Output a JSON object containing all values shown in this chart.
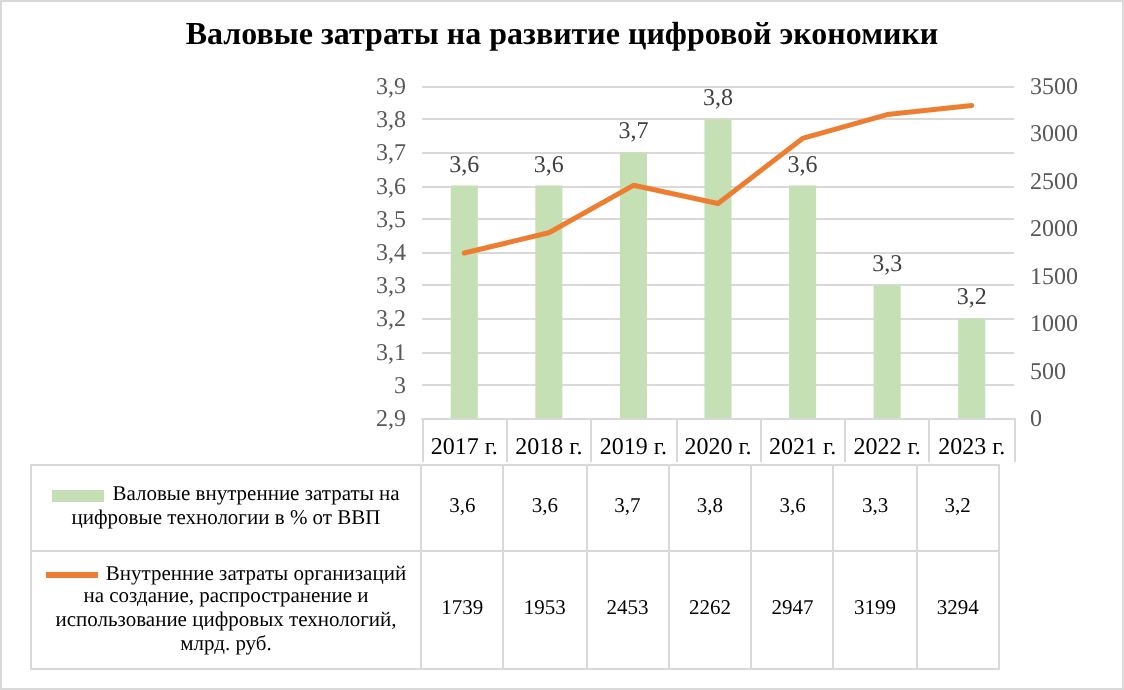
{
  "chart_data": {
    "type": "bar",
    "title": "Валовые  затраты на развитие цифровой экономики",
    "categories": [
      "2017 г.",
      "2018 г.",
      "2019 г.",
      "2020 г.",
      "2021 г.",
      "2022 г.",
      "2023 г."
    ],
    "series": [
      {
        "name": "Валовые внутренние затраты на цифровые технологии в % от ВВП",
        "color": "#c5e0b4",
        "values": [
          3.6,
          3.6,
          3.7,
          3.8,
          3.6,
          3.3,
          3.2
        ],
        "value_labels": [
          "3,6",
          "3,6",
          "3,7",
          "3,8",
          "3,6",
          "3,3",
          "3,2"
        ]
      },
      {
        "name": "Внутренние затраты организаций на создание, распространение и использование цифровых технологий, млрд. руб.",
        "type": "line",
        "axis": "y2",
        "color": "#ed7d31",
        "values": [
          1739,
          1953,
          2453,
          2262,
          2947,
          3199,
          3294
        ],
        "value_labels": [
          "1739",
          "1953",
          "2453",
          "2262",
          "2947",
          "3199",
          "3294"
        ]
      }
    ],
    "ylim": [
      2.9,
      3.9
    ],
    "yticks": [
      {
        "value": 2.9,
        "label": "2,9"
      },
      {
        "value": 3,
        "label": "3"
      },
      {
        "value": 3.1,
        "label": "3,1"
      },
      {
        "value": 3.2,
        "label": "3,2"
      },
      {
        "value": 3.3,
        "label": "3,3"
      },
      {
        "value": 3.4,
        "label": "3,4"
      },
      {
        "value": 3.5,
        "label": "3,5"
      },
      {
        "value": 3.6,
        "label": "3,6"
      },
      {
        "value": 3.7,
        "label": "3,7"
      },
      {
        "value": 3.8,
        "label": "3,8"
      },
      {
        "value": 3.9,
        "label": "3,9"
      }
    ],
    "y2lim": [
      0,
      3500
    ],
    "y2ticks": [
      0,
      500,
      1000,
      1500,
      2000,
      2500,
      3000,
      3500
    ],
    "grid": "y",
    "legend": "bottom",
    "marker": "none",
    "line_style": "solid"
  }
}
